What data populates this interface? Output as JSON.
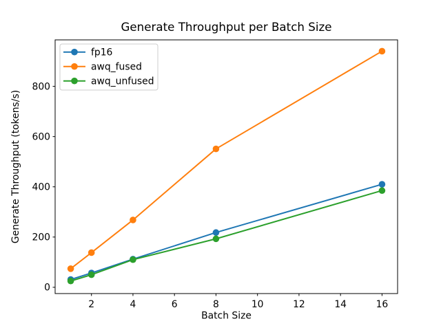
{
  "window": {
    "background": "#ffffff"
  },
  "chart_data": {
    "type": "line",
    "title": "Generate Throughput per Batch Size",
    "xlabel": "Batch Size",
    "ylabel": "Generate Throughput (tokens/s)",
    "x": [
      1,
      2,
      4,
      8,
      16
    ],
    "series": [
      {
        "name": "fp16",
        "color": "#1f77b4",
        "values": [
          31,
          57,
          112,
          218,
          410
        ]
      },
      {
        "name": "awq_fused",
        "color": "#ff7f0e",
        "values": [
          74,
          138,
          268,
          551,
          940
        ]
      },
      {
        "name": "awq_unfused",
        "color": "#2ca02c",
        "values": [
          25,
          50,
          110,
          193,
          385
        ]
      }
    ],
    "marker": "o",
    "grid": false,
    "legend_position": "upper left",
    "xlim": [
      0.25,
      16.75
    ],
    "ylim": [
      -25,
      985
    ],
    "xticks": [
      2,
      4,
      6,
      8,
      10,
      12,
      14,
      16
    ],
    "yticks": [
      0,
      200,
      400,
      600,
      800
    ],
    "axis_color": "#000000",
    "legend_border_color": "#cccccc"
  }
}
